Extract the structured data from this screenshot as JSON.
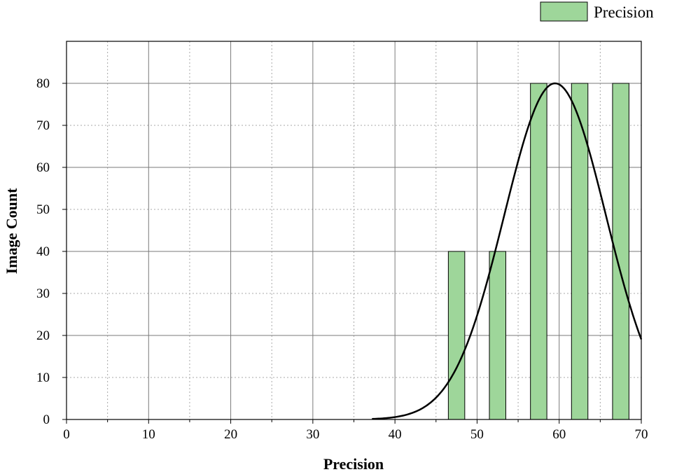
{
  "chart_data": {
    "type": "bar",
    "title": "",
    "xlabel": "Precision",
    "ylabel": "Image Count",
    "xlim": [
      0,
      70
    ],
    "ylim": [
      0,
      90
    ],
    "x_ticks": [
      0,
      10,
      20,
      30,
      40,
      50,
      60,
      70
    ],
    "y_ticks": [
      0,
      10,
      20,
      30,
      40,
      50,
      60,
      70,
      80
    ],
    "grid": true,
    "legend_position": "top-right",
    "series": [
      {
        "name": "Precision",
        "type": "bar",
        "color": "#9ed69a",
        "bar_width": 2,
        "x": [
          47.5,
          52.5,
          57.5,
          62.5,
          67.5
        ],
        "values": [
          40,
          40,
          80,
          80,
          80
        ]
      },
      {
        "type": "line",
        "color": "#000000",
        "curve": "normal",
        "peak_x": 59.5,
        "peak_y": 80,
        "sigma": 6.2,
        "x_start": 37.2,
        "x_end": 70
      }
    ]
  }
}
